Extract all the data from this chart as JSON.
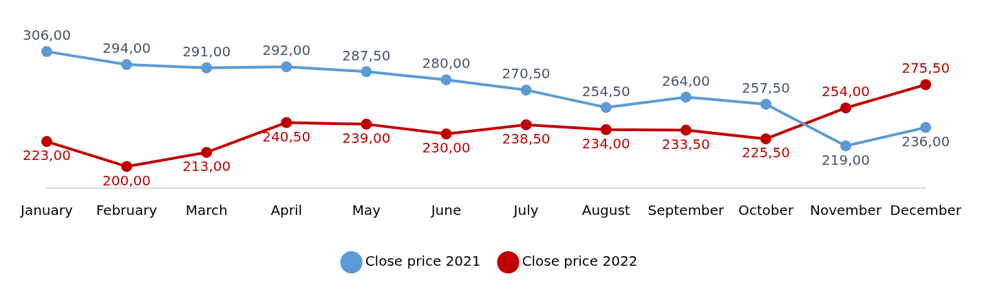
{
  "chart_data": {
    "type": "line",
    "categories": [
      "January",
      "February",
      "March",
      "April",
      "May",
      "June",
      "July",
      "August",
      "September",
      "October",
      "November",
      "December"
    ],
    "series": [
      {
        "name": "Close price 2021",
        "color": "#5b9bd5",
        "values": [
          306,
          294,
          291,
          292,
          287.5,
          280,
          270.5,
          254.5,
          264,
          257.5,
          219,
          236
        ],
        "value_labels": [
          "306,00",
          "294,00",
          "291,00",
          "292,00",
          "287,50",
          "280,00",
          "270,50",
          "254,50",
          "264,00",
          "257,50",
          "219,00",
          "236,00"
        ]
      },
      {
        "name": "Close price 2022",
        "color": "#c00000",
        "values": [
          223,
          200,
          213,
          240.5,
          239,
          230,
          238.5,
          234,
          233.5,
          225.5,
          254,
          275.5
        ],
        "value_labels": [
          "223,00",
          "200,00",
          "213,00",
          "240,50",
          "239,00",
          "230,00",
          "238,50",
          "234,00",
          "233,50",
          "225,50",
          "254,00",
          "275,50"
        ]
      }
    ],
    "marker": "circle",
    "line_style": "solid",
    "grid": false,
    "legend": "bottom",
    "tick_labels": "x"
  }
}
